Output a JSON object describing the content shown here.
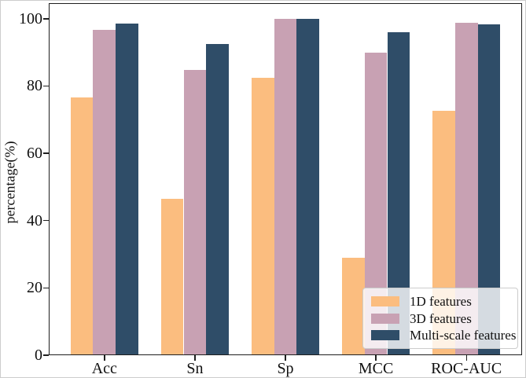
{
  "chart_data": {
    "type": "bar",
    "title": "",
    "xlabel": "",
    "ylabel": "percentage(%)",
    "categories": [
      "Acc",
      "Sn",
      "Sp",
      "MCC",
      "ROC-AUC"
    ],
    "series": [
      {
        "name": "1D features",
        "color": "#FBBD7F",
        "values": [
          76.6,
          46.4,
          82.5,
          29.0,
          72.6
        ]
      },
      {
        "name": "3D features",
        "color": "#C8A1B3",
        "values": [
          96.6,
          84.8,
          100.0,
          89.8,
          98.7
        ]
      },
      {
        "name": "Multi-scale features",
        "color": "#2F4D68",
        "values": [
          98.6,
          92.4,
          100.0,
          96.0,
          98.4
        ]
      }
    ],
    "yticks": [
      0,
      20,
      40,
      60,
      80,
      100
    ],
    "ylim": [
      0,
      104.6
    ],
    "xlim": [
      -0.615,
      4.615
    ],
    "bar_group_width": 0.75,
    "grid": false,
    "legend_position": "lower right"
  }
}
